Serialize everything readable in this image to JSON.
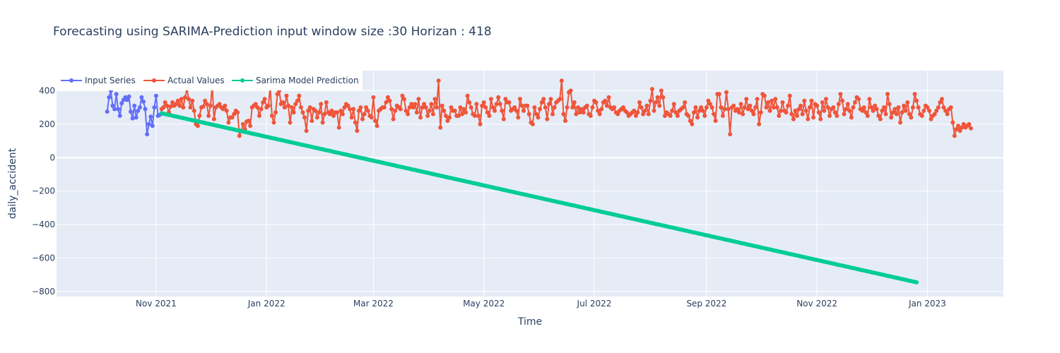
{
  "chart_data": {
    "type": "line",
    "title": "Forecasting using SARIMA-Prediction input window size :30  Horizan : 418",
    "xlabel": "Time",
    "ylabel": "daily_accident",
    "x_range": [
      "2021-09-07",
      "2023-02-12"
    ],
    "ylim": [
      -830,
      520
    ],
    "y_ticks": [
      400,
      200,
      0,
      -200,
      -400,
      -600,
      -800
    ],
    "y_tick_labels": [
      "400",
      "200",
      "0",
      "−200",
      "−400",
      "−600",
      "−800"
    ],
    "x_ticks": [
      "2021-11-01",
      "2022-01-01",
      "2022-03-01",
      "2022-05-01",
      "2022-07-01",
      "2022-09-01",
      "2022-11-01",
      "2023-01-01"
    ],
    "x_tick_labels": [
      "Nov 2021",
      "Jan 2022",
      "Mar 2022",
      "May 2022",
      "Jul 2022",
      "Sep 2022",
      "Nov 2022",
      "Jan 2023"
    ],
    "grid": true,
    "legend_position": "top-left",
    "series": [
      {
        "name": "Input Series",
        "color": "#636efa",
        "start": "2021-10-05",
        "values": [
          275,
          360,
          400,
          310,
          290,
          380,
          290,
          250,
          325,
          345,
          360,
          345,
          365,
          275,
          235,
          310,
          240,
          280,
          300,
          360,
          335,
          290,
          140,
          200,
          245,
          190,
          300,
          370,
          250,
          255
        ]
      },
      {
        "name": "Actual Values",
        "color": "#ef553b",
        "start": "2021-11-04",
        "values": [
          290,
          300,
          330,
          310,
          270,
          305,
          330,
          310,
          320,
          340,
          310,
          350,
          300,
          360,
          410,
          350,
          300,
          340,
          280,
          200,
          190,
          250,
          300,
          305,
          340,
          320,
          250,
          310,
          425,
          230,
          300,
          310,
          320,
          300,
          290,
          310,
          280,
          210,
          240,
          240,
          260,
          280,
          270,
          130,
          160,
          200,
          170,
          215,
          220,
          190,
          300,
          310,
          320,
          300,
          250,
          290,
          330,
          350,
          300,
          310,
          420,
          250,
          210,
          270,
          380,
          400,
          320,
          330,
          300,
          370,
          310,
          210,
          300,
          270,
          320,
          340,
          370,
          300,
          270,
          240,
          160,
          280,
          300,
          220,
          290,
          280,
          240,
          270,
          320,
          210,
          260,
          330,
          270,
          260,
          280,
          250,
          270,
          270,
          180,
          280,
          260,
          300,
          320,
          310,
          290,
          240,
          290,
          210,
          160,
          280,
          300,
          230,
          260,
          300,
          280,
          250,
          240,
          360,
          220,
          190,
          280,
          290,
          300,
          300,
          330,
          360,
          340,
          290,
          230,
          280,
          310,
          300,
          290,
          370,
          350,
          280,
          260,
          300,
          320,
          300,
          320,
          270,
          350,
          240,
          300,
          320,
          300,
          250,
          280,
          320,
          260,
          350,
          300,
          460,
          180,
          310,
          280,
          250,
          220,
          240,
          300,
          280,
          280,
          250,
          250,
          300,
          260,
          290,
          270,
          370,
          330,
          300,
          260,
          250,
          320,
          250,
          200,
          310,
          330,
          300,
          270,
          250,
          350,
          300,
          280,
          320,
          360,
          320,
          280,
          230,
          350,
          330,
          330,
          280,
          290,
          300,
          280,
          240,
          350,
          310,
          280,
          310,
          310,
          260,
          210,
          200,
          300,
          260,
          240,
          290,
          330,
          350,
          300,
          230,
          320,
          350,
          260,
          300,
          330,
          340,
          350,
          460,
          260,
          220,
          300,
          390,
          400,
          300,
          330,
          260,
          300,
          270,
          290,
          270,
          300,
          310,
          260,
          250,
          300,
          340,
          330,
          280,
          260,
          290,
          330,
          340,
          310,
          360,
          300,
          290,
          300,
          270,
          260,
          280,
          290,
          300,
          280,
          270,
          250,
          260,
          270,
          280,
          250,
          270,
          330,
          300,
          260,
          280,
          310,
          260,
          340,
          410,
          280,
          330,
          360,
          310,
          400,
          360,
          250,
          270,
          260,
          250,
          280,
          320,
          270,
          250,
          280,
          290,
          300,
          330,
          260,
          250,
          220,
          200,
          270,
          300,
          240,
          280,
          300,
          280,
          250,
          300,
          340,
          320,
          300,
          260,
          220,
          380,
          380,
          300,
          250,
          290,
          390,
          290,
          140,
          300,
          310,
          280,
          290,
          270,
          320,
          260,
          300,
          350,
          290,
          310,
          280,
          260,
          300,
          350,
          200,
          270,
          380,
          370,
          300,
          330,
          280,
          340,
          300,
          350,
          300,
          250,
          280,
          330,
          280,
          270,
          310,
          370,
          260,
          230,
          280,
          250,
          290,
          310,
          260,
          340,
          280,
          230,
          300,
          340,
          240,
          320,
          310,
          270,
          230,
          330,
          280,
          350,
          300,
          250,
          290,
          300,
          270,
          250,
          320,
          380,
          340,
          260,
          290,
          320,
          280,
          240,
          300,
          330,
          360,
          350,
          290,
          280,
          300,
          270,
          250,
          350,
          300,
          280,
          310,
          290,
          250,
          230,
          280,
          300,
          260,
          380,
          320,
          240,
          270,
          290,
          260,
          300,
          210,
          270,
          310,
          280,
          330,
          260,
          240,
          300,
          380,
          340,
          300,
          260,
          250,
          280,
          310,
          300,
          280,
          230,
          250,
          260,
          280,
          300,
          330,
          350,
          300,
          280,
          260,
          290,
          300,
          210,
          130,
          170,
          190,
          160,
          180,
          200,
          180,
          190,
          200,
          175
        ]
      },
      {
        "name": "Sarima Model Prediction",
        "color": "#00cc96",
        "start": "2021-11-04",
        "count": 418,
        "start_value": 265,
        "end_value": -745
      }
    ]
  }
}
